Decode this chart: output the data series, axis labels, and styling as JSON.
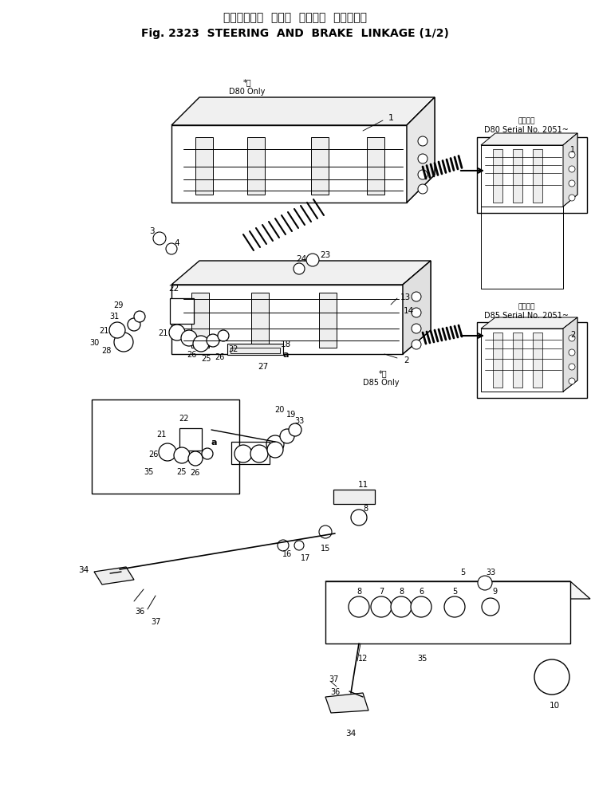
{
  "title_jp": "ステアリング  および  ブレーキ  リンケージ",
  "title_en": "Fig. 2323  STEERING  AND  BRAKE  LINKAGE (1/2)",
  "bg_color": "#ffffff",
  "fig_width": 7.41,
  "fig_height": 10.03,
  "dpi": 100,
  "inset1_title_jp": "適用号機",
  "inset1_title": "D80 Serial No. 2051~",
  "inset2_title_jp": "適用号機",
  "inset2_title": "D85 Serial No. 2051~",
  "note_d80": "*用\nD80 Only",
  "note_d85": "*用\nD85 Only"
}
